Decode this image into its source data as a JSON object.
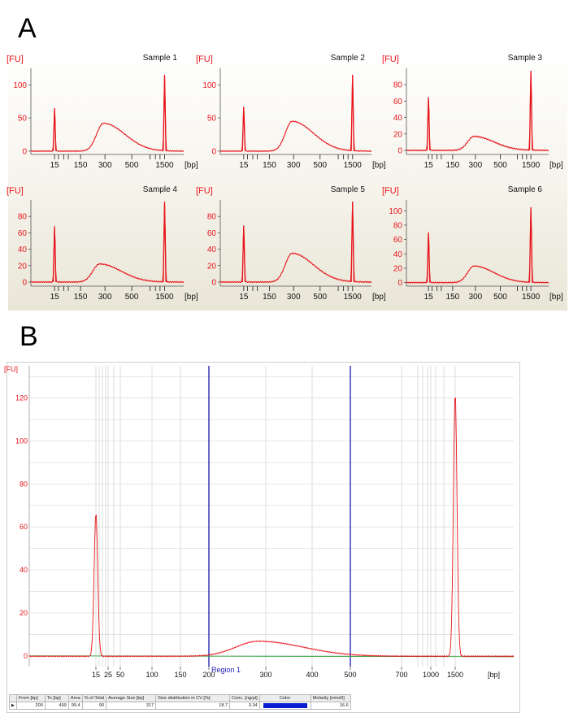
{
  "figure": {
    "panel_a_label": "A",
    "panel_b_label": "B"
  },
  "chart_data": [
    {
      "type": "line",
      "panel": "A",
      "title": "Sample 1",
      "ylabel": "[FU]",
      "xlabel": "[bp]",
      "x_ticks": [
        "15",
        "150",
        "300",
        "500",
        "1500"
      ],
      "y_ticks": [
        0,
        50,
        100
      ],
      "ylim": [
        -5,
        125
      ],
      "peaks": [
        {
          "bp": 15,
          "fu": 65,
          "kind": "marker"
        },
        {
          "bp": 290,
          "fu": 42,
          "kind": "smear"
        },
        {
          "bp": 1500,
          "fu": 115,
          "kind": "marker"
        }
      ]
    },
    {
      "type": "line",
      "panel": "A",
      "title": "Sample 2",
      "ylabel": "[FU]",
      "xlabel": "[bp]",
      "x_ticks": [
        "15",
        "150",
        "300",
        "500",
        "1500"
      ],
      "y_ticks": [
        0,
        50,
        100
      ],
      "ylim": [
        -5,
        125
      ],
      "peaks": [
        {
          "bp": 15,
          "fu": 67,
          "kind": "marker"
        },
        {
          "bp": 290,
          "fu": 45,
          "kind": "smear"
        },
        {
          "bp": 1500,
          "fu": 115,
          "kind": "marker"
        }
      ]
    },
    {
      "type": "line",
      "panel": "A",
      "title": "Sample 3",
      "ylabel": "[FU]",
      "xlabel": "[bp]",
      "x_ticks": [
        "15",
        "150",
        "300",
        "500",
        "1500"
      ],
      "y_ticks": [
        0,
        20,
        40,
        60,
        80
      ],
      "ylim": [
        -5,
        100
      ],
      "peaks": [
        {
          "bp": 15,
          "fu": 65,
          "kind": "marker"
        },
        {
          "bp": 290,
          "fu": 17,
          "kind": "smear"
        },
        {
          "bp": 1500,
          "fu": 97,
          "kind": "marker"
        }
      ]
    },
    {
      "type": "line",
      "panel": "A",
      "title": "Sample 4",
      "ylabel": "[FU]",
      "xlabel": "[bp]",
      "x_ticks": [
        "15",
        "150",
        "300",
        "500",
        "1500"
      ],
      "y_ticks": [
        0,
        20,
        40,
        60,
        80
      ],
      "ylim": [
        -5,
        100
      ],
      "peaks": [
        {
          "bp": 15,
          "fu": 68,
          "kind": "marker"
        },
        {
          "bp": 270,
          "fu": 22,
          "kind": "smear"
        },
        {
          "bp": 1500,
          "fu": 98,
          "kind": "marker"
        }
      ]
    },
    {
      "type": "line",
      "panel": "A",
      "title": "Sample 5",
      "ylabel": "[FU]",
      "xlabel": "[bp]",
      "x_ticks": [
        "15",
        "150",
        "300",
        "500",
        "1500"
      ],
      "y_ticks": [
        0,
        20,
        40,
        60,
        80
      ],
      "ylim": [
        -5,
        100
      ],
      "peaks": [
        {
          "bp": 15,
          "fu": 69,
          "kind": "marker"
        },
        {
          "bp": 290,
          "fu": 35,
          "kind": "smear"
        },
        {
          "bp": 1500,
          "fu": 98,
          "kind": "marker"
        }
      ]
    },
    {
      "type": "line",
      "panel": "A",
      "title": "Sample 6",
      "ylabel": "[FU]",
      "xlabel": "[bp]",
      "x_ticks": [
        "15",
        "150",
        "300",
        "500",
        "1500"
      ],
      "y_ticks": [
        0,
        20,
        40,
        60,
        80,
        100
      ],
      "ylim": [
        -5,
        115
      ],
      "peaks": [
        {
          "bp": 15,
          "fu": 70,
          "kind": "marker"
        },
        {
          "bp": 290,
          "fu": 23,
          "kind": "smear"
        },
        {
          "bp": 1500,
          "fu": 105,
          "kind": "marker"
        }
      ]
    },
    {
      "type": "line",
      "panel": "B",
      "title": "",
      "ylabel": "[FU]",
      "xlabel": "[bp]",
      "x_ticks": [
        "15",
        "25",
        "50",
        "100",
        "150",
        "200",
        "300",
        "400",
        "500",
        "700",
        "1000",
        "1500"
      ],
      "y_ticks": [
        0,
        20,
        40,
        60,
        80,
        100,
        120
      ],
      "ylim": [
        -5,
        135
      ],
      "region": {
        "label": "Region 1",
        "from_bp": 200,
        "to_bp": 500
      },
      "peaks": [
        {
          "bp": 15,
          "fu": 67,
          "kind": "marker"
        },
        {
          "bp": 280,
          "fu": 7,
          "kind": "smear"
        },
        {
          "bp": 1500,
          "fu": 123,
          "kind": "marker"
        }
      ]
    }
  ],
  "table": {
    "headers": [
      "From [bp]",
      "To [bp]",
      "Area",
      "% of Total",
      "Average Size [bp]",
      "Size distribution in CV [%]",
      "Conc. [ng/µl]",
      "Color",
      "Molarity [nmol/l]"
    ],
    "rows": [
      {
        "from": "200",
        "to": "499",
        "area": "99.4",
        "pct": "90",
        "avg": "317",
        "cv": "18.7",
        "conc": "3.34",
        "color": "#0a1fd1",
        "molarity": "16.6"
      }
    ]
  }
}
